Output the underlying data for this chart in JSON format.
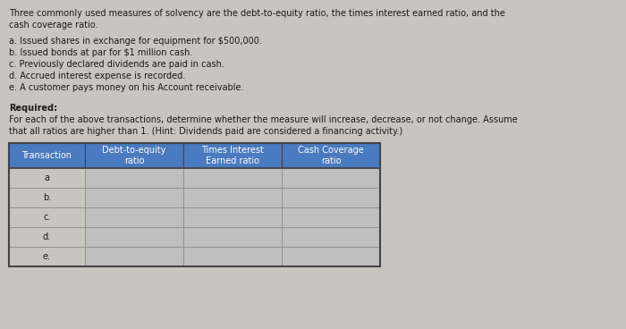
{
  "background_color": "#c8c4c0",
  "text_color": "#1a1a1a",
  "intro_text_line1": "Three commonly used measures of solvency are the debt-to-equity ratio, the times interest earned ratio, and the",
  "intro_text_line2": "cash coverage ratio.",
  "items": [
    "a. Issued shares in exchange for equipment for $500,000.",
    "b. Issued bonds at par for $1 million cash.",
    "c. Previously declared dividends are paid in cash.",
    "d. Accrued interest expense is recorded.",
    "e. A customer pays money on his Account receivable."
  ],
  "required_label": "Required:",
  "required_text_line1": "For each of the above transactions, determine whether the measure will increase, decrease, or not change. Assume",
  "required_text_line2": "that all ratios are higher than 1. (Hint: Dividends paid are considered a financing activity.)",
  "table_header": [
    "Transaction",
    "Debt-to-equity\nratio",
    "Times Interest\nEarned ratio",
    "Cash Coverage\nratio"
  ],
  "table_rows": [
    "a",
    "b.",
    "c.",
    "d.",
    "e."
  ],
  "header_bg_color": "#4a7abf",
  "header_text_color": "#ffffff",
  "cell_bg_color": "#bfbfbf",
  "transaction_bg_color": "#c8c4c0",
  "table_border_color": "#444444",
  "inner_border_color": "#888888",
  "font_size": 7.0,
  "header_font_size": 7.0
}
